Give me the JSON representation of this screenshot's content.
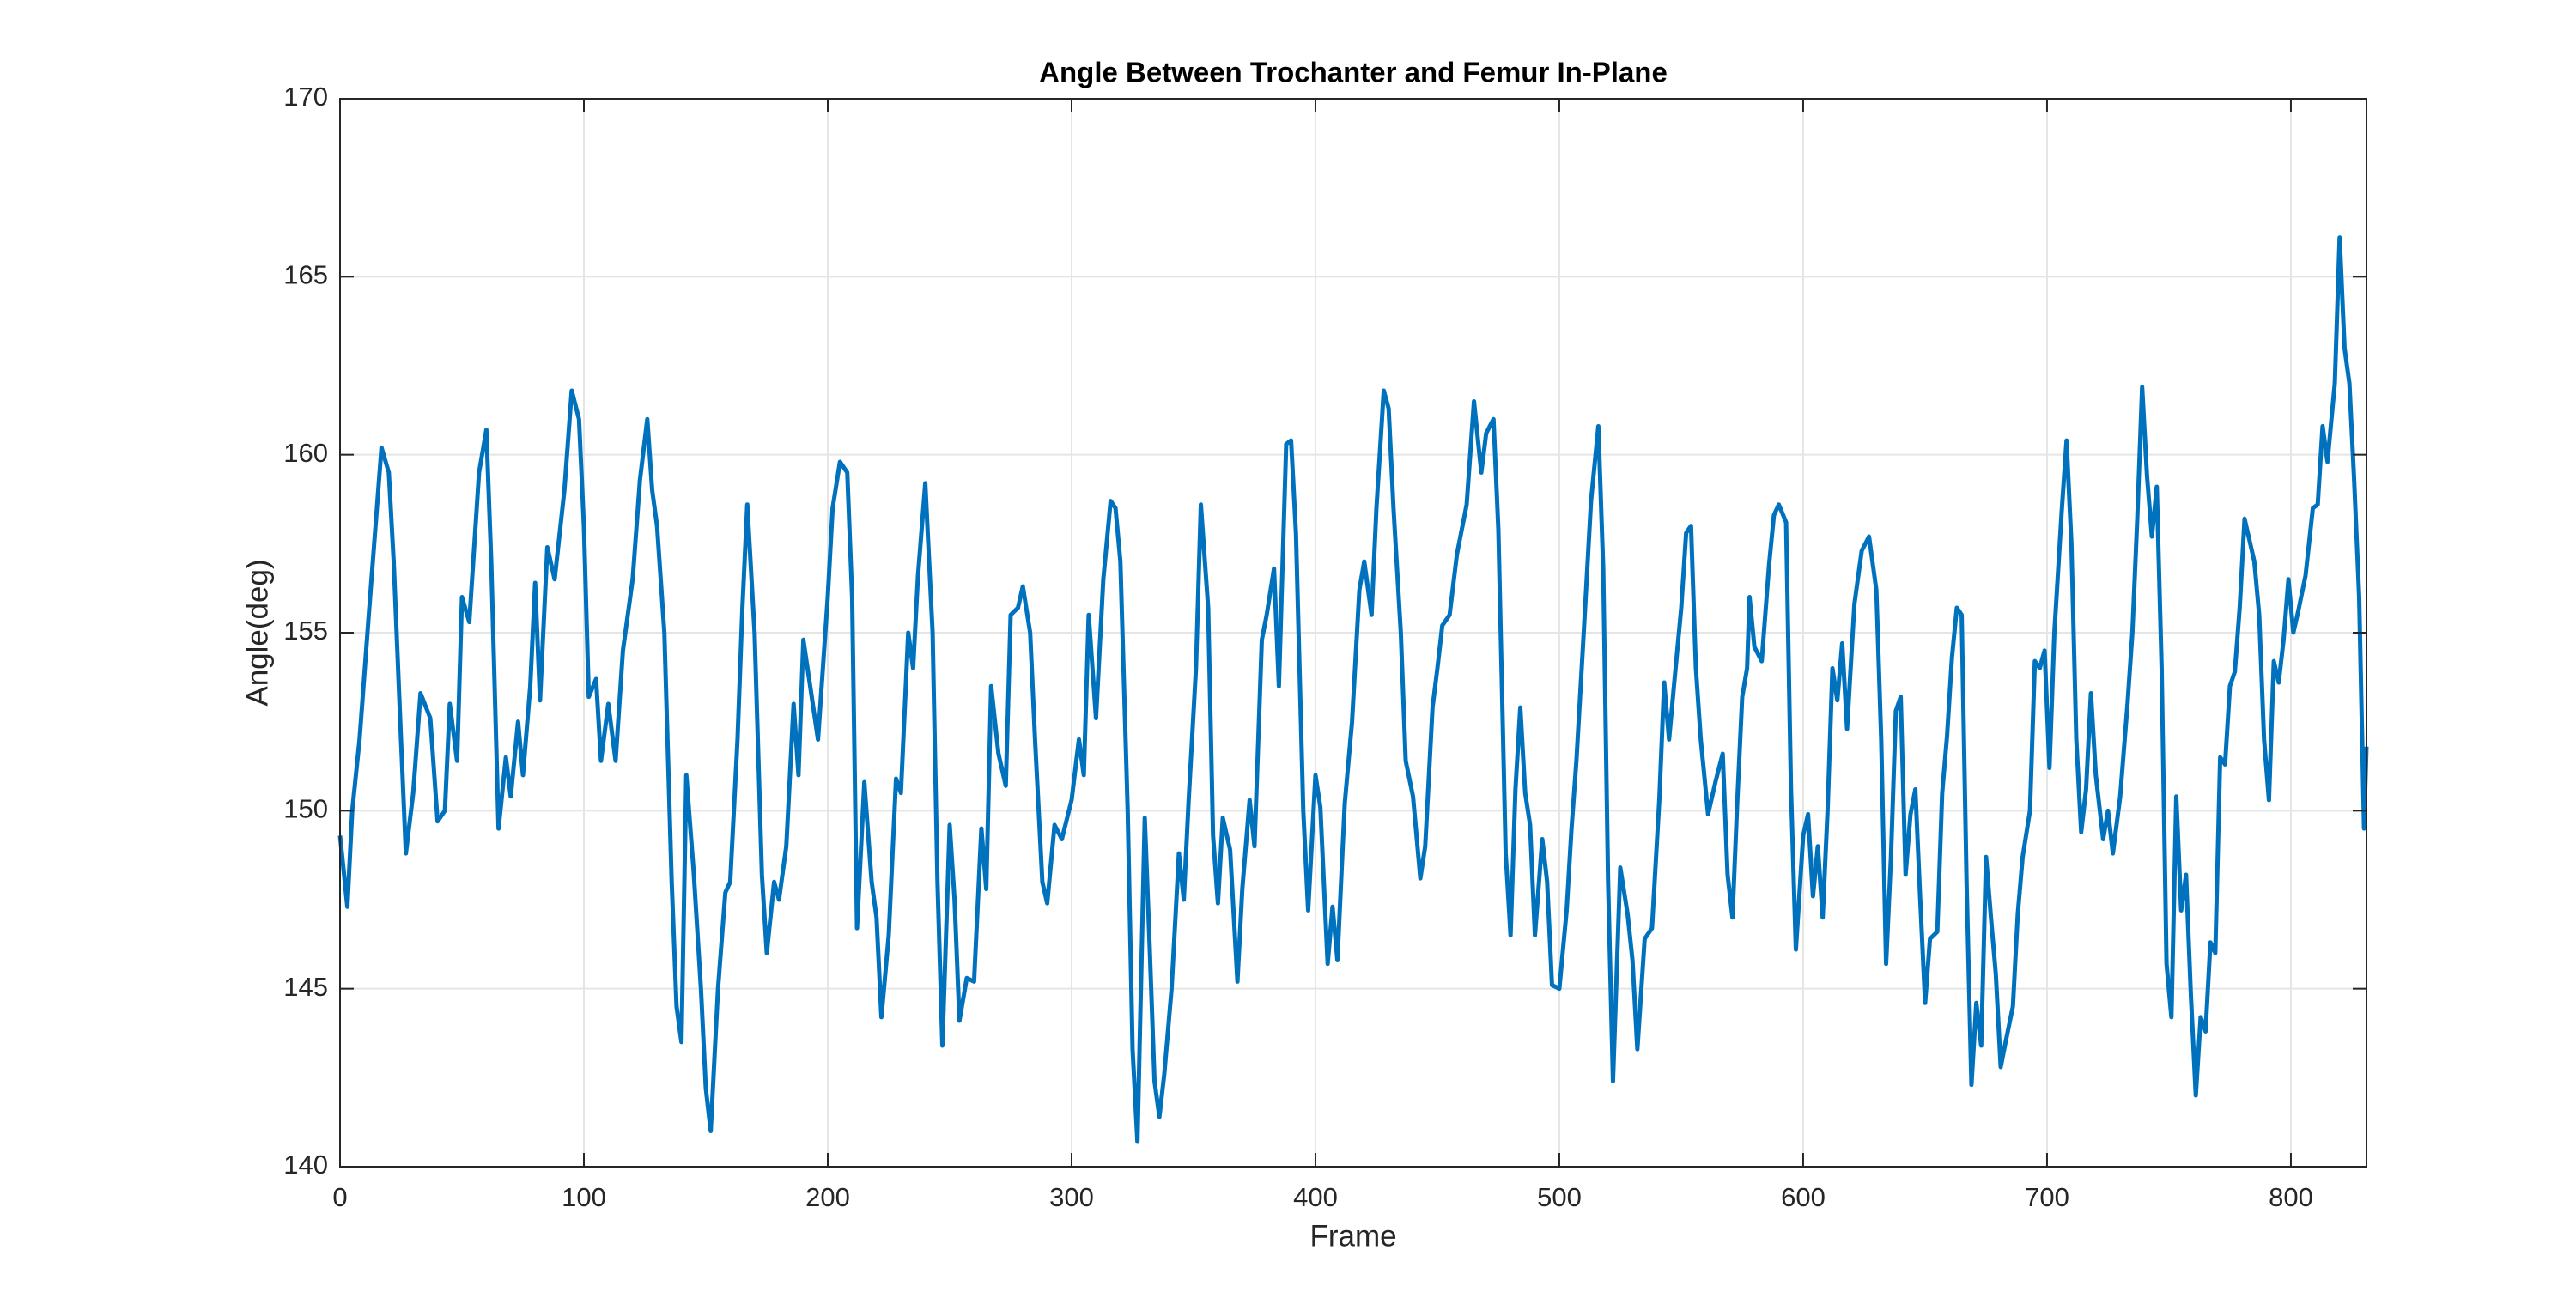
{
  "chart_data": {
    "type": "line",
    "title": "Angle Between Trochanter and Femur In-Plane",
    "xlabel": "Frame",
    "ylabel": "Angle(deg)",
    "xlim": [
      0,
      831
    ],
    "xticks": [
      0,
      100,
      200,
      300,
      400,
      500,
      600,
      700,
      800
    ],
    "ylim": [
      140,
      170
    ],
    "yticks": [
      140,
      145,
      150,
      155,
      160,
      165,
      170
    ],
    "grid": true,
    "series": [
      {
        "name": "Angle",
        "color": "#0072bd",
        "x": [
          0,
          3,
          5,
          8,
          12,
          17,
          20,
          22,
          25,
          27,
          30,
          33,
          37,
          40,
          43,
          45,
          48,
          50,
          53,
          57,
          60,
          62,
          65,
          68,
          70,
          73,
          75,
          78,
          80,
          82,
          85,
          88,
          92,
          95,
          98,
          100,
          102,
          105,
          107,
          110,
          113,
          116,
          120,
          123,
          126,
          128,
          130,
          133,
          136,
          138,
          140,
          142,
          145,
          148,
          150,
          152,
          155,
          158,
          160,
          163,
          165,
          167,
          170,
          173,
          175,
          178,
          180,
          183,
          186,
          188,
          190,
          193,
          196,
          200,
          202,
          205,
          208,
          210,
          212,
          215,
          218,
          220,
          222,
          225,
          228,
          230,
          233,
          235,
          237,
          240,
          243,
          245,
          247,
          250,
          252,
          254,
          257,
          260,
          263,
          265,
          267,
          270,
          273,
          275,
          278,
          280,
          283,
          285,
          288,
          290,
          293,
          296,
          300,
          303,
          305,
          307,
          310,
          313,
          316,
          318,
          320,
          323,
          325,
          327,
          330,
          332,
          334,
          336,
          338,
          341,
          344,
          346,
          348,
          351,
          353,
          356,
          358,
          360,
          362,
          365,
          368,
          370,
          373,
          375,
          378,
          380,
          383,
          385,
          388,
          390,
          392,
          395,
          397,
          400,
          402,
          405,
          407,
          409,
          412,
          415,
          418,
          420,
          423,
          425,
          428,
          430,
          432,
          435,
          437,
          440,
          443,
          445,
          448,
          450,
          452,
          455,
          458,
          462,
          465,
          468,
          470,
          473,
          475,
          478,
          480,
          482,
          484,
          486,
          488,
          490,
          493,
          495,
          497,
          500,
          503,
          505,
          507,
          510,
          513,
          516,
          518,
          520,
          522,
          525,
          528,
          530,
          532,
          535,
          538,
          541,
          543,
          545,
          547,
          550,
          552,
          554,
          556,
          558,
          561,
          564,
          567,
          569,
          571,
          573,
          575,
          577,
          578,
          580,
          583,
          586,
          588,
          590,
          593,
          595,
          597,
          600,
          602,
          604,
          606,
          608,
          610,
          612,
          614,
          616,
          618,
          621,
          624,
          627,
          630,
          632,
          634,
          636,
          638,
          640,
          642,
          644,
          646,
          648,
          650,
          652,
          655,
          657,
          659,
          661,
          663,
          665,
          667,
          669,
          671,
          673,
          675,
          677,
          679,
          681,
          683,
          686,
          688,
          690,
          693,
          695,
          697,
          699,
          701,
          703,
          706,
          708,
          710,
          712,
          714,
          716,
          718,
          720,
          723,
          725,
          727,
          730,
          733,
          735,
          737,
          739,
          741,
          743,
          745,
          747,
          749,
          751,
          753,
          755,
          757,
          759,
          761,
          763,
          765,
          767,
          769,
          771,
          773,
          775,
          777,
          779,
          781,
          783,
          785,
          787,
          789,
          791,
          793,
          795,
          797,
          799,
          801,
          803,
          806,
          809,
          811,
          813,
          815,
          818,
          820,
          822,
          824,
          826,
          828,
          830,
          831
        ],
        "values": [
          149.3,
          147.3,
          150,
          152,
          155.7,
          160.2,
          159.5,
          157,
          152,
          148.8,
          150.5,
          153.3,
          152.6,
          149.7,
          150,
          153,
          151.4,
          156,
          155.3,
          159.5,
          160.7,
          157,
          149.5,
          151.5,
          150.4,
          152.5,
          151,
          153.5,
          156.4,
          153.1,
          157.4,
          156.5,
          159,
          161.8,
          161,
          158,
          153.2,
          153.7,
          151.4,
          153,
          151.4,
          154.5,
          156.5,
          159.3,
          161,
          159,
          158,
          155,
          148,
          144.5,
          143.5,
          151,
          148.3,
          145,
          142.2,
          141,
          145,
          147.7,
          148,
          152,
          155.7,
          158.6,
          155,
          148.2,
          146,
          148,
          147.5,
          149,
          153,
          151,
          154.8,
          153.4,
          152,
          156,
          158.5,
          159.8,
          159.5,
          156,
          146.7,
          150.8,
          148,
          147,
          144.2,
          146.5,
          150.9,
          150.5,
          155,
          154,
          156.6,
          159.2,
          155,
          148,
          143.4,
          149.6,
          147.5,
          144.1,
          145.3,
          145.2,
          149.5,
          147.8,
          153.5,
          151.6,
          150.7,
          155.5,
          155.7,
          156.3,
          155,
          152,
          148,
          147.4,
          149.6,
          149.2,
          150.3,
          152,
          151,
          155.5,
          152.6,
          156.5,
          158.7,
          158.5,
          157,
          150,
          143.3,
          140.7,
          149.8,
          146.2,
          142.4,
          141.4,
          142.6,
          145,
          148.8,
          147.5,
          150.3,
          154,
          158.6,
          155.7,
          149.3,
          147.4,
          149.8,
          148.9,
          145.2,
          147.8,
          150.3,
          149,
          154.8,
          155.5,
          156.8,
          153.5,
          160.3,
          160.4,
          157.8,
          150,
          147.2,
          151,
          150.1,
          145.7,
          147.3,
          145.8,
          150.2,
          152.5,
          156.2,
          157,
          155.5,
          158.5,
          161.8,
          161.3,
          158.5,
          155,
          151.4,
          150.4,
          148.1,
          149,
          152.9,
          154,
          155.2,
          155.5,
          157.2,
          158.6,
          161.5,
          159.5,
          160.6,
          161,
          157.9,
          148.8,
          146.5,
          150.6,
          152.9,
          150.5,
          149.6,
          146.5,
          149.2,
          148,
          145.1,
          145,
          147.2,
          149.5,
          151.4,
          155,
          158.7,
          160.8,
          156.8,
          148,
          142.4,
          148.4,
          147.1,
          145.8,
          143.3,
          146.4,
          146.7,
          150.3,
          153.6,
          152,
          153.5,
          155.7,
          157.8,
          158,
          154,
          152,
          149.9,
          150.8,
          151.6,
          148.2,
          147,
          150.3,
          153.2,
          154,
          156,
          154.6,
          154.2,
          156.9,
          158.3,
          158.6,
          158.1,
          150.6,
          146.1,
          149.3,
          149.9,
          147.6,
          149,
          147,
          150,
          154,
          153.1,
          154.7,
          152.3,
          155.8,
          157.3,
          157.7,
          156.2,
          152,
          145.7,
          148.7,
          152.8,
          153.2,
          148.2,
          149.9,
          150.6,
          147.5,
          144.6,
          146.4,
          146.6,
          150.5,
          152.1,
          154.3,
          155.7,
          155.5,
          148,
          142.3,
          144.6,
          143.4,
          148.7,
          147,
          145.4,
          142.8,
          143.5,
          144.5,
          147.1,
          148.7,
          150,
          154.2,
          154,
          154.5,
          151.2,
          155,
          158.4,
          160.4,
          157.5,
          152,
          149.4,
          150.6,
          153.3,
          151,
          149.2,
          150,
          148.8,
          150.4,
          153,
          155,
          158.2,
          161.9,
          159.4,
          157.7,
          159.1,
          154,
          145.7,
          144.2,
          150.4,
          147.2,
          148.2,
          144.8,
          142,
          144.2,
          143.8,
          146.3,
          146,
          151.5,
          151.3,
          153.5,
          153.9,
          155.7,
          158.2,
          157.6,
          157,
          155.5,
          152,
          150.3,
          154.2,
          153.6,
          154.8,
          156.5,
          155,
          155.6,
          156.6,
          158.5,
          158.6,
          160.8,
          159.8,
          162,
          166.1,
          163,
          162,
          159.2,
          156,
          149.5,
          151.8
        ]
      }
    ]
  }
}
